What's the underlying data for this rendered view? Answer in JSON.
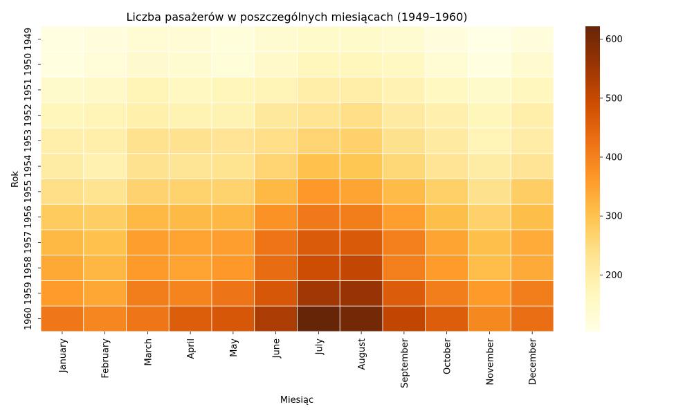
{
  "chart_data": {
    "type": "heatmap",
    "title": "Liczba pasażerów w poszczególnych miesiącach (1949–1960)",
    "xlabel": "Miesiąc",
    "ylabel": "Rok",
    "x": [
      "January",
      "February",
      "March",
      "April",
      "May",
      "June",
      "July",
      "August",
      "September",
      "October",
      "November",
      "December"
    ],
    "y": [
      "1949",
      "1950",
      "1951",
      "1952",
      "1953",
      "1954",
      "1955",
      "1956",
      "1957",
      "1958",
      "1959",
      "1960"
    ],
    "values": [
      [
        112,
        118,
        132,
        129,
        121,
        135,
        148,
        148,
        136,
        119,
        104,
        118
      ],
      [
        115,
        126,
        141,
        135,
        125,
        149,
        170,
        170,
        158,
        133,
        114,
        140
      ],
      [
        145,
        150,
        178,
        163,
        172,
        178,
        199,
        199,
        184,
        162,
        146,
        166
      ],
      [
        171,
        180,
        193,
        181,
        183,
        218,
        230,
        242,
        209,
        191,
        172,
        194
      ],
      [
        196,
        196,
        236,
        235,
        229,
        243,
        264,
        272,
        237,
        211,
        180,
        201
      ],
      [
        204,
        188,
        235,
        227,
        234,
        264,
        302,
        293,
        259,
        229,
        203,
        229
      ],
      [
        242,
        233,
        267,
        269,
        270,
        315,
        364,
        347,
        312,
        274,
        237,
        278
      ],
      [
        284,
        277,
        317,
        313,
        318,
        374,
        413,
        405,
        355,
        306,
        271,
        306
      ],
      [
        315,
        301,
        356,
        348,
        355,
        422,
        465,
        467,
        404,
        347,
        305,
        336
      ],
      [
        340,
        318,
        362,
        348,
        363,
        435,
        491,
        505,
        404,
        359,
        310,
        337
      ],
      [
        360,
        342,
        406,
        396,
        420,
        472,
        548,
        559,
        463,
        407,
        362,
        405
      ],
      [
        417,
        391,
        419,
        461,
        472,
        535,
        622,
        606,
        508,
        461,
        390,
        432
      ]
    ],
    "colorbar": {
      "min": 104,
      "max": 622,
      "ticks": [
        200,
        300,
        400,
        500,
        600
      ],
      "colormap": "YlOrBr"
    },
    "grid": false,
    "cell_border_color": "#ffffff"
  }
}
